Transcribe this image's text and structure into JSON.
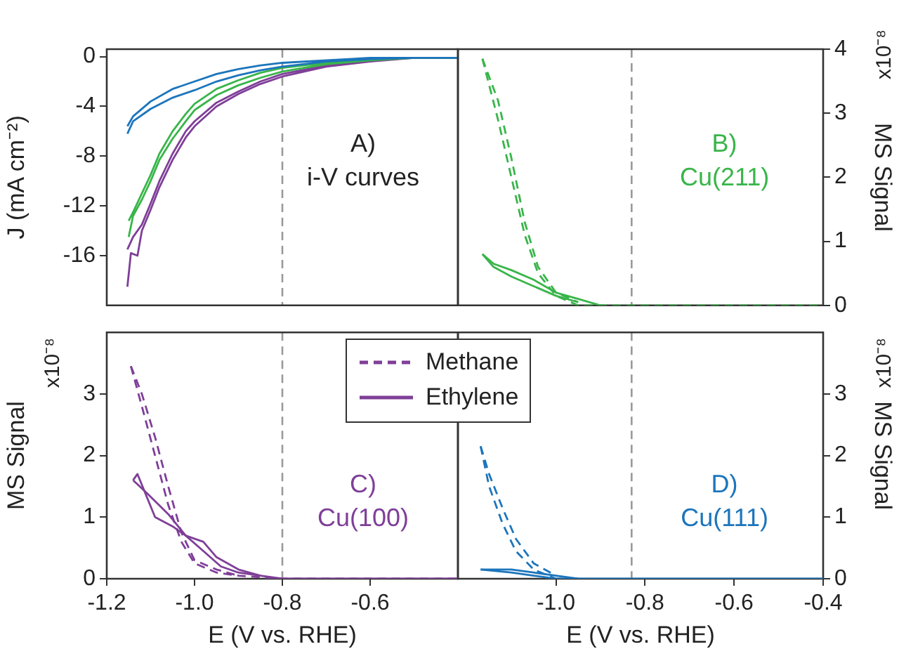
{
  "chart_data": [
    {
      "type": "line",
      "ylabel": "J (mA cm⁻²)",
      "xlim": [
        -1.2,
        -0.4
      ],
      "ylim": [
        -20,
        0.6
      ],
      "yticks": [
        0,
        -4,
        -8,
        -12,
        -16
      ],
      "tick_labels": "y",
      "annotations": [
        "A)\ni-V curves"
      ],
      "ref_lines": [
        {
          "axis": "x",
          "value": -0.8,
          "color": "#999999",
          "line_style": "dashed"
        }
      ],
      "series": [
        {
          "color": "#1c75bc",
          "line_style": "solid",
          "x": [
            -1.153,
            -1.14,
            -1.1,
            -1.05,
            -1.0,
            -0.95,
            -0.9,
            -0.85,
            -0.8,
            -0.7,
            -0.6,
            -0.5,
            -0.4,
            -0.5,
            -0.6,
            -0.7,
            -0.8,
            -0.85,
            -0.9,
            -0.95,
            -1.0,
            -1.05,
            -1.1,
            -1.14,
            -1.153
          ],
          "values": [
            -6.2,
            -5.2,
            -4.2,
            -3.3,
            -2.7,
            -2.0,
            -1.5,
            -1.1,
            -0.8,
            -0.4,
            -0.2,
            -0.1,
            -0.1,
            -0.1,
            -0.1,
            -0.3,
            -0.5,
            -0.7,
            -1.0,
            -1.4,
            -2.0,
            -2.6,
            -3.6,
            -4.8,
            -5.6
          ]
        },
        {
          "color": "#39b54a",
          "line_style": "solid",
          "x": [
            -1.15,
            -1.14,
            -1.12,
            -1.1,
            -1.08,
            -1.05,
            -1.02,
            -1.0,
            -0.95,
            -0.9,
            -0.85,
            -0.8,
            -0.7,
            -0.6,
            -0.5,
            -0.4,
            -0.5,
            -0.6,
            -0.7,
            -0.8,
            -0.85,
            -0.9,
            -0.95,
            -1.0,
            -1.02,
            -1.05,
            -1.08,
            -1.1,
            -1.12,
            -1.14,
            -1.15
          ],
          "values": [
            -14.5,
            -12.8,
            -11.5,
            -10,
            -8.3,
            -6.6,
            -5.2,
            -4.3,
            -3.1,
            -2.3,
            -1.7,
            -1.2,
            -0.6,
            -0.3,
            -0.1,
            -0.1,
            -0.1,
            -0.2,
            -0.5,
            -0.9,
            -1.3,
            -1.9,
            -2.6,
            -3.8,
            -4.6,
            -6.0,
            -7.8,
            -9.5,
            -11,
            -12.5,
            -13.2
          ]
        },
        {
          "color": "#7f3f98",
          "line_style": "solid",
          "x": [
            -1.153,
            -1.145,
            -1.13,
            -1.12,
            -1.1,
            -1.08,
            -1.05,
            -1.02,
            -1.0,
            -0.95,
            -0.9,
            -0.85,
            -0.8,
            -0.7,
            -0.6,
            -0.5,
            -0.4,
            -0.5,
            -0.6,
            -0.7,
            -0.8,
            -0.85,
            -0.9,
            -0.95,
            -1.0,
            -1.02,
            -1.05,
            -1.08,
            -1.1,
            -1.12,
            -1.14,
            -1.153
          ],
          "values": [
            -18.5,
            -15.8,
            -16,
            -14,
            -12.3,
            -10.5,
            -8.3,
            -6.5,
            -5.6,
            -4.0,
            -3.0,
            -2.2,
            -1.6,
            -0.8,
            -0.4,
            -0.1,
            -0.1,
            -0.1,
            -0.3,
            -0.7,
            -1.4,
            -2.0,
            -2.8,
            -3.7,
            -5.2,
            -6.0,
            -7.8,
            -10,
            -11.8,
            -13.5,
            -14.5,
            -15.5
          ]
        }
      ]
    },
    {
      "type": "line",
      "y2label": "MS Signal",
      "xlim": [
        -1.22,
        -0.4
      ],
      "y2lim": [
        0,
        4
      ],
      "y2ticks": [
        0,
        1,
        2,
        3,
        4
      ],
      "tick_labels": "y",
      "annotations": [
        "B)\nCu(211)",
        "x10⁻⁸"
      ],
      "ref_lines": [
        {
          "axis": "x",
          "value": -0.83,
          "color": "#999999",
          "line_style": "dashed"
        }
      ],
      "series": [
        {
          "color": "#39b54a",
          "line_style": "dashed",
          "axis": "y2",
          "x": [
            -1.165,
            -1.13,
            -1.1,
            -1.07,
            -1.04,
            -1.0,
            -0.95,
            -0.8,
            -0.4
          ],
          "values": [
            3.85,
            2.9,
            2.0,
            1.1,
            0.5,
            0.15,
            0,
            0,
            0
          ]
        },
        {
          "color": "#39b54a",
          "line_style": "dashed",
          "axis": "y2",
          "x": [
            -1.165,
            -1.13,
            -1.1,
            -1.07,
            -1.04,
            -1.0,
            -0.95
          ],
          "values": [
            3.85,
            3.2,
            2.3,
            1.3,
            0.6,
            0.2,
            0.05
          ]
        },
        {
          "color": "#39b54a",
          "line_style": "solid",
          "axis": "y2",
          "x": [
            -1.165,
            -1.14,
            -1.1,
            -1.05,
            -1.0,
            -0.95,
            -0.9
          ],
          "values": [
            0.8,
            0.65,
            0.55,
            0.4,
            0.2,
            0.1,
            0
          ]
        },
        {
          "color": "#39b54a",
          "line_style": "solid",
          "axis": "y2",
          "x": [
            -1.165,
            -1.14,
            -1.1,
            -1.05,
            -1.0,
            -0.95
          ],
          "values": [
            0.8,
            0.6,
            0.45,
            0.3,
            0.15,
            0.05
          ]
        }
      ]
    },
    {
      "type": "line",
      "xlabel": "E (V vs. RHE)",
      "ylabel": "MS Signal",
      "xlim": [
        -1.2,
        -0.4
      ],
      "xticks": [
        -1.2,
        {
          "value": -1,
          "label": "-1.0"
        },
        -0.8,
        -0.6
      ],
      "ylim": [
        0,
        4
      ],
      "yticks": [
        0,
        1,
        2,
        3
      ],
      "legend": "top right",
      "annotations": [
        "C)\nCu(100)",
        "x10⁻⁸"
      ],
      "ref_lines": [
        {
          "axis": "x",
          "value": -0.8,
          "color": "#999999",
          "line_style": "dashed"
        }
      ],
      "series": [
        {
          "name": "Methane",
          "color": "#7f3f98",
          "line_style": "dashed",
          "x": [
            -1.145,
            -1.12,
            -1.09,
            -1.06,
            -1.03,
            -1.0,
            -0.95,
            -0.9,
            -0.8,
            -0.4
          ],
          "values": [
            3.45,
            2.8,
            2.0,
            1.2,
            0.6,
            0.25,
            0.1,
            0.05,
            0,
            0
          ]
        },
        {
          "color": "#7f3f98",
          "line_style": "dashed",
          "x": [
            -1.145,
            -1.12,
            -1.09,
            -1.06,
            -1.03,
            -1.0,
            -0.95,
            -0.9
          ],
          "values": [
            3.45,
            3.0,
            2.3,
            1.5,
            0.75,
            0.3,
            0.15,
            0.05
          ]
        },
        {
          "name": "Ethylene",
          "color": "#7f3f98",
          "line_style": "solid",
          "x": [
            -1.14,
            -1.11,
            -1.06,
            -1.02,
            -0.98,
            -0.94,
            -0.9,
            -0.85,
            -0.8,
            -0.4
          ],
          "values": [
            1.6,
            1.4,
            1.05,
            0.7,
            0.45,
            0.2,
            0.1,
            0.05,
            0,
            0
          ]
        },
        {
          "color": "#7f3f98",
          "line_style": "solid",
          "x": [
            -1.14,
            -1.13,
            -1.09,
            -1.05,
            -1.02,
            -0.98,
            -0.95,
            -0.9,
            -0.85
          ],
          "values": [
            1.6,
            1.7,
            1.0,
            0.85,
            0.7,
            0.6,
            0.35,
            0.15,
            0.05
          ]
        }
      ]
    },
    {
      "type": "line",
      "xlabel": "E (V vs. RHE)",
      "y2label": "MS Signal",
      "xlim": [
        -1.22,
        -0.4
      ],
      "xticks": [
        {
          "value": -1,
          "label": "-1.0"
        },
        -0.8,
        -0.6,
        -0.4
      ],
      "y2lim": [
        0,
        4
      ],
      "y2ticks": [
        0,
        1,
        2,
        3
      ],
      "annotations": [
        "D)\nCu(111)",
        "x10⁻⁸"
      ],
      "ref_lines": [
        {
          "axis": "x",
          "value": -0.83,
          "color": "#999999",
          "line_style": "dashed"
        }
      ],
      "series": [
        {
          "color": "#1c75bc",
          "line_style": "dashed",
          "axis": "y2",
          "x": [
            -1.169,
            -1.15,
            -1.12,
            -1.09,
            -1.05,
            -1.0
          ],
          "values": [
            2.15,
            1.5,
            0.9,
            0.45,
            0.15,
            0
          ]
        },
        {
          "color": "#1c75bc",
          "line_style": "dashed",
          "axis": "y2",
          "x": [
            -1.169,
            -1.15,
            -1.12,
            -1.09,
            -1.05,
            -1.0
          ],
          "values": [
            2.15,
            1.7,
            1.15,
            0.65,
            0.25,
            0.05
          ]
        },
        {
          "color": "#1c75bc",
          "line_style": "solid",
          "axis": "y2",
          "x": [
            -1.169,
            -1.1,
            -1.05,
            -1.0,
            -0.9,
            -0.4
          ],
          "values": [
            0.15,
            0.1,
            0.05,
            0,
            0,
            0
          ]
        },
        {
          "color": "#1c75bc",
          "line_style": "solid",
          "axis": "y2",
          "x": [
            -1.169,
            -1.1,
            -1.05,
            -1.0,
            -0.95
          ],
          "values": [
            0.15,
            0.15,
            0.1,
            0.05,
            0
          ]
        }
      ]
    }
  ]
}
